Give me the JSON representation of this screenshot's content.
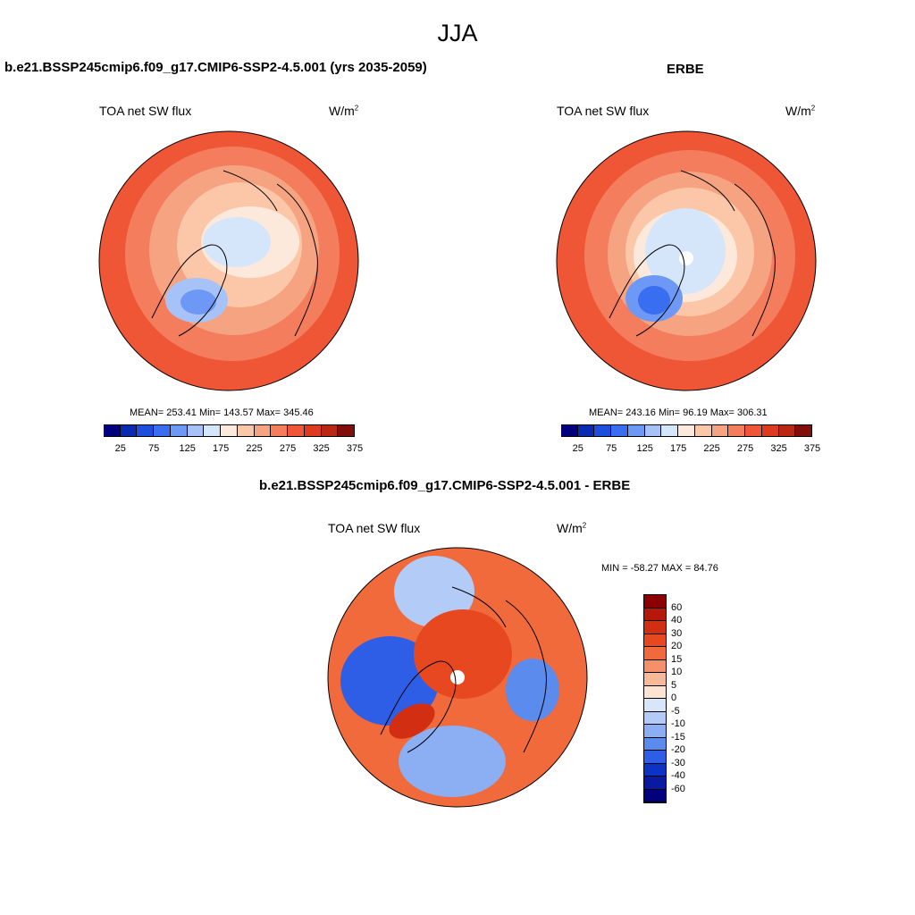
{
  "figure": {
    "title": "JJA"
  },
  "panels": {
    "model": {
      "title": "b.e21.BSSP245cmip6.f09_g17.CMIP6-SSP2-4.5.001 (yrs 2035-2059)",
      "variable": "TOA net SW flux",
      "units_base": "W/m",
      "units_exp": "2",
      "stats": "MEAN= 253.41  Min= 143.57  Max= 345.46"
    },
    "obs": {
      "title": "ERBE",
      "variable": "TOA net SW flux",
      "units_base": "W/m",
      "units_exp": "2",
      "stats": "MEAN= 243.16  Min=  96.19  Max= 306.31"
    },
    "diff": {
      "title": "b.e21.BSSP245cmip6.f09_g17.CMIP6-SSP2-4.5.001 - ERBE",
      "variable": "TOA net SW flux",
      "units_base": "W/m",
      "units_exp": "2",
      "stats": "MIN = -58.27  MAX =  84.76"
    }
  },
  "chart_data": [
    {
      "type": "heatmap",
      "projection": "north polar stereographic",
      "title": "b.e21.BSSP245cmip6.f09_g17.CMIP6-SSP2-4.5.001 (yrs 2035-2059)",
      "variable": "TOA net SW flux",
      "units": "W/m2",
      "mean": 253.41,
      "min": 143.57,
      "max": 345.46,
      "colorbar": {
        "orientation": "horizontal",
        "tick_labels": [
          "25",
          "75",
          "125",
          "175",
          "225",
          "275",
          "325",
          "375"
        ],
        "colors": [
          "#00007f",
          "#0a2ab4",
          "#1c4fdc",
          "#3a6ef0",
          "#6e98f5",
          "#a7c2f7",
          "#d6e6fa",
          "#fde9dc",
          "#fbc7a8",
          "#f6a382",
          "#f37d5c",
          "#ee5636",
          "#dd3a1f",
          "#bb2715",
          "#7f0f08"
        ]
      },
      "global_mean_reference": 253.41
    },
    {
      "type": "heatmap",
      "projection": "north polar stereographic",
      "title": "ERBE",
      "variable": "TOA net SW flux",
      "units": "W/m2",
      "mean": 243.16,
      "min": 96.19,
      "max": 306.31,
      "colorbar": {
        "orientation": "horizontal",
        "tick_labels": [
          "25",
          "75",
          "125",
          "175",
          "225",
          "275",
          "325",
          "375"
        ],
        "colors": [
          "#00007f",
          "#0a2ab4",
          "#1c4fdc",
          "#3a6ef0",
          "#6e98f5",
          "#a7c2f7",
          "#d6e6fa",
          "#fde9dc",
          "#fbc7a8",
          "#f6a382",
          "#f37d5c",
          "#ee5636",
          "#dd3a1f",
          "#bb2715",
          "#7f0f08"
        ]
      }
    },
    {
      "type": "heatmap",
      "projection": "north polar stereographic",
      "title": "b.e21.BSSP245cmip6.f09_g17.CMIP6-SSP2-4.5.001 - ERBE",
      "variable": "TOA net SW flux",
      "units": "W/m2",
      "min": -58.27,
      "max": 84.76,
      "colorbar": {
        "orientation": "vertical",
        "tick_labels": [
          "60",
          "40",
          "30",
          "20",
          "15",
          "10",
          "5",
          "0",
          "-5",
          "-10",
          "-15",
          "-20",
          "-30",
          "-40",
          "-60"
        ],
        "colors": [
          "#8b0000",
          "#b5170a",
          "#d22e12",
          "#e8481f",
          "#f06a3c",
          "#f4916a",
          "#f8b89a",
          "#fde3d2",
          "#d8e6fa",
          "#b2cbf7",
          "#8caef2",
          "#5c8bee",
          "#2e5de6",
          "#0c33c4",
          "#0a1aa0",
          "#00007f"
        ]
      }
    }
  ]
}
